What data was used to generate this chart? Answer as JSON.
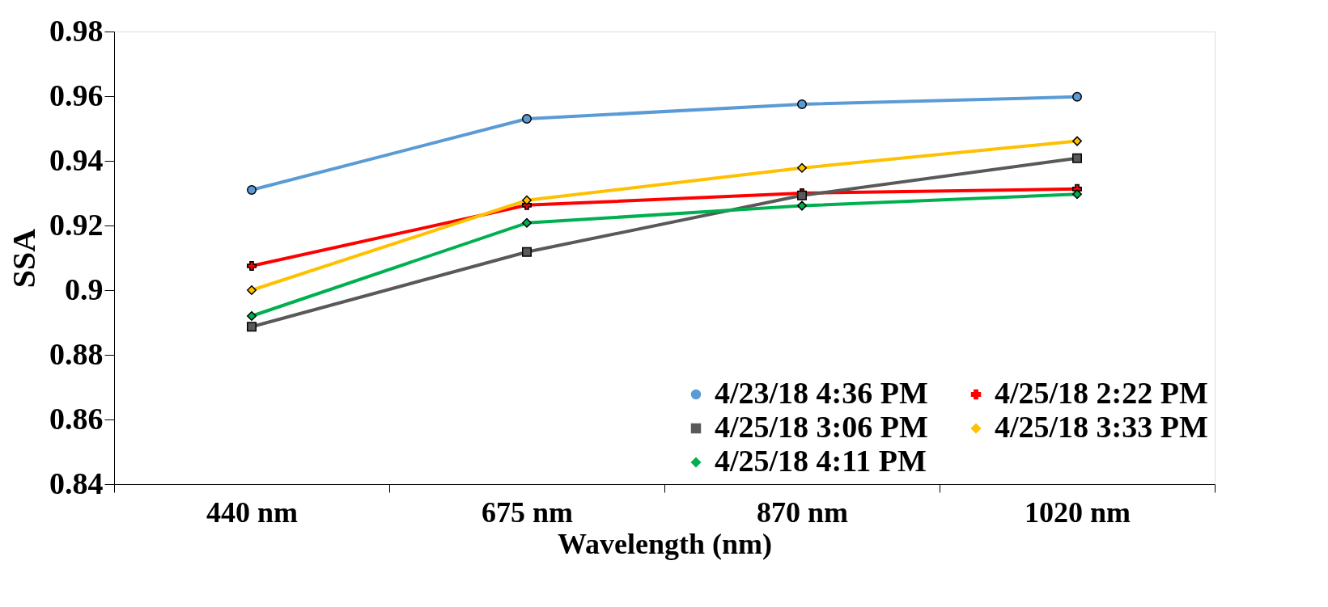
{
  "chart_data": {
    "type": "line",
    "xlabel": "Wavelength (nm)",
    "ylabel": "SSA",
    "categories": [
      "440 nm",
      "675 nm",
      "870 nm",
      "1020 nm"
    ],
    "ylim": [
      0.84,
      0.98
    ],
    "yticks": [
      0.84,
      0.86,
      0.88,
      0.9,
      0.92,
      0.94,
      0.96,
      0.98
    ],
    "grid": false,
    "legend": "bottom right",
    "line_style": "solid",
    "series": [
      {
        "name": "4/23/18 4:36 PM",
        "color": "#5b9bd5",
        "marker": "circle",
        "values": [
          0.931,
          0.953,
          0.9575,
          0.9598
        ]
      },
      {
        "name": "4/25/18 2:22 PM",
        "color": "#ff0000",
        "marker": "cross",
        "values": [
          0.9075,
          0.9263,
          0.93,
          0.9313
        ]
      },
      {
        "name": "4/25/18 3:06 PM",
        "color": "#595959",
        "marker": "square",
        "values": [
          0.8887,
          0.9118,
          0.9293,
          0.9408
        ]
      },
      {
        "name": "4/25/18 3:33 PM",
        "color": "#ffc000",
        "marker": "diamond",
        "values": [
          0.9,
          0.9278,
          0.9378,
          0.9461
        ]
      },
      {
        "name": "4/25/18 4:11 PM",
        "color": "#00b050",
        "marker": "diamond",
        "values": [
          0.892,
          0.9208,
          0.9261,
          0.9297
        ]
      }
    ]
  }
}
